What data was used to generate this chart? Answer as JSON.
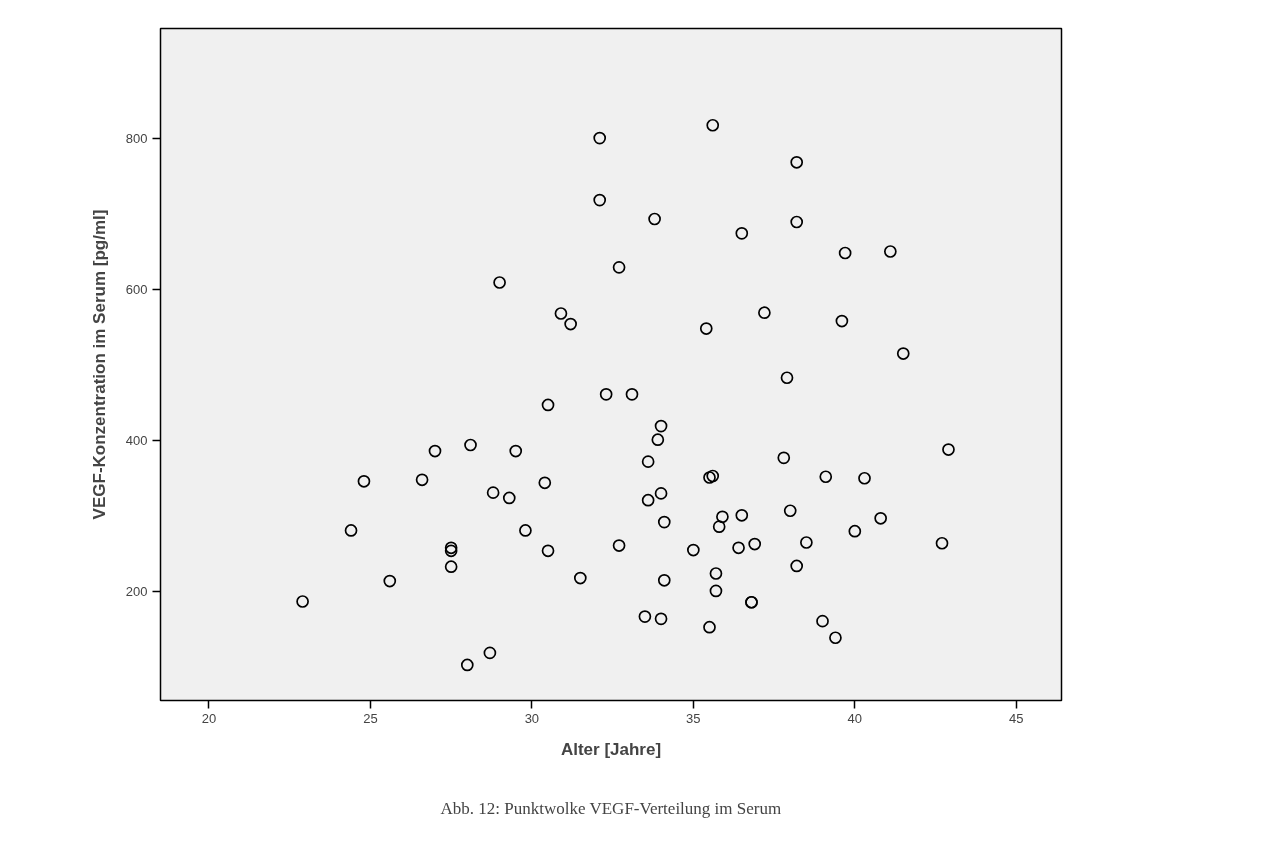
{
  "chart_data": {
    "type": "scatter",
    "xlabel": "Alter [Jahre]",
    "ylabel": "VEGF-Konzentration im Serum [pg/ml]",
    "annotations": [
      "Abb. 12: Punktwolke VEGF-Verteilung im Serum"
    ],
    "marker": "circle",
    "grid": false,
    "xlim": [
      18.5,
      46.4
    ],
    "ylim": [
      56,
      945
    ],
    "xticks": [
      20,
      25,
      30,
      35,
      40,
      45
    ],
    "yticks": [
      200,
      400,
      600,
      800
    ],
    "series": [
      {
        "color": "#000000",
        "x": [
          32.1,
          32.1,
          32.7,
          29.0,
          30.9,
          31.2,
          35.6,
          38.2,
          33.8,
          36.5,
          38.2,
          39.7,
          41.1,
          37.2,
          35.4,
          39.6,
          41.5,
          37.9,
          30.5,
          32.3,
          27.0,
          28.1,
          29.5,
          24.8,
          26.6,
          28.8,
          29.3,
          30.4,
          24.4,
          29.8,
          27.5,
          27.5,
          27.5,
          30.5,
          32.7,
          25.6,
          22.9,
          31.5,
          28.7,
          28.0,
          33.1,
          34.0,
          33.9,
          33.6,
          37.8,
          42.9,
          35.5,
          35.6,
          39.1,
          40.3,
          34.0,
          33.6,
          34.1,
          35.9,
          35.8,
          36.5,
          38.0,
          40.8,
          40.0,
          35.0,
          36.4,
          36.9,
          38.5,
          42.7,
          38.2,
          34.1,
          35.7,
          35.7,
          36.8,
          36.8,
          33.5,
          34.0,
          35.5,
          39.0,
          39.4
        ],
        "values": [
          800,
          718,
          629,
          609,
          568,
          554,
          817,
          768,
          693,
          674,
          689,
          648,
          650,
          569,
          548,
          558,
          515,
          483,
          447,
          461,
          386,
          394,
          386,
          346,
          348,
          331,
          324,
          344,
          281,
          281,
          258,
          254,
          233,
          254,
          261,
          214,
          187,
          218,
          119,
          103,
          461,
          419,
          401,
          372,
          377,
          388,
          351,
          353,
          352,
          350,
          330,
          321,
          292,
          299,
          286,
          301,
          307,
          297,
          280,
          255,
          258,
          263,
          265,
          264,
          234,
          215,
          224,
          201,
          186,
          186,
          167,
          164,
          153,
          161,
          139
        ]
      }
    ]
  }
}
